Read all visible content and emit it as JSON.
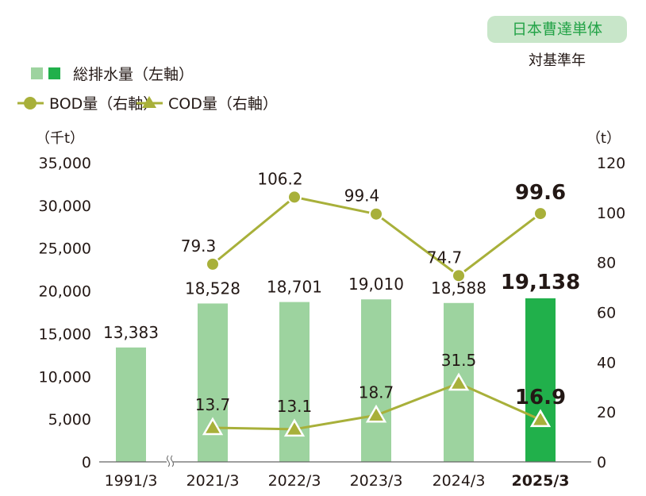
{
  "badge": "日本曹達単体",
  "baseline_label": "対基準年",
  "chart_data": {
    "type": "bar+line",
    "categories": [
      "1991/3",
      "2021/3",
      "2022/3",
      "2023/3",
      "2024/3",
      "2025/3"
    ],
    "axis_break_after": "1991/3",
    "series": [
      {
        "name": "総排水量（左軸）",
        "kind": "bar",
        "axis": "left",
        "values": [
          13383,
          18528,
          18701,
          19010,
          18588,
          19138
        ],
        "labels": [
          "13,383",
          "18,528",
          "18,701",
          "19,010",
          "18,588",
          "19,138"
        ],
        "color": "#9dd39f",
        "highlight_color": "#21b04b"
      },
      {
        "name": "BOD量（右軸）",
        "kind": "line",
        "marker": "circle",
        "axis": "right",
        "values": [
          null,
          79.3,
          106.2,
          99.4,
          74.7,
          99.6
        ],
        "labels": [
          "",
          "79.3",
          "106.2",
          "99.4",
          "74.7",
          "99.6"
        ],
        "color": "#a8b03a"
      },
      {
        "name": "COD量（右軸）",
        "kind": "line",
        "marker": "triangle",
        "axis": "right",
        "values": [
          null,
          13.7,
          13.1,
          18.7,
          31.5,
          16.9
        ],
        "labels": [
          "",
          "13.7",
          "13.1",
          "18.7",
          "31.5",
          "16.9"
        ],
        "color": "#a8b03a"
      }
    ],
    "left_axis": {
      "unit": "（千t）",
      "range": [
        0,
        35000
      ],
      "ticks": [
        "0",
        "5,000",
        "10,000",
        "15,000",
        "20,000",
        "25,000",
        "30,000",
        "35,000"
      ]
    },
    "right_axis": {
      "unit": "（t）",
      "range": [
        0,
        120
      ],
      "ticks": [
        "0",
        "20",
        "40",
        "60",
        "80",
        "100",
        "120"
      ]
    },
    "highlight_category": "2025/3",
    "legend_placement": "top-left",
    "grid": false
  }
}
